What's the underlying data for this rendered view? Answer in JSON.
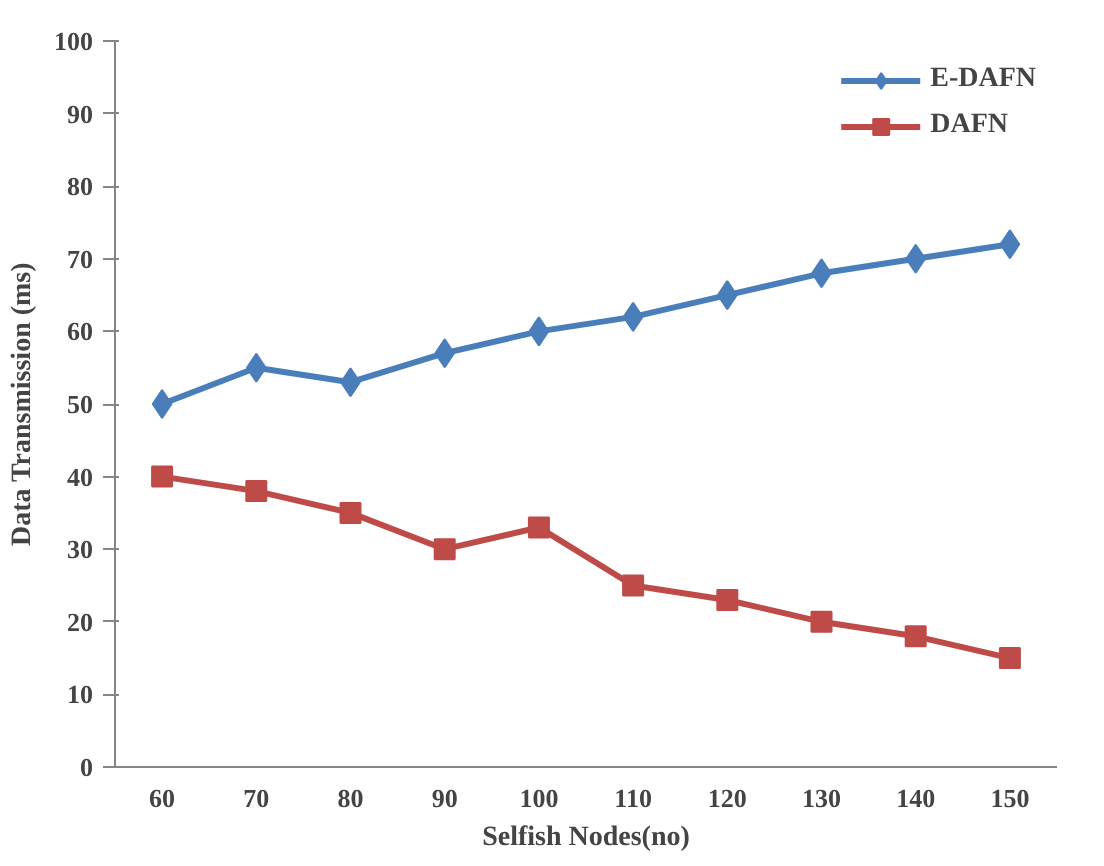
{
  "chart_data": {
    "type": "line",
    "xlabel": "Selfish Nodes(no)",
    "ylabel": "Data Transmission (ms)",
    "categories": [
      "60",
      "70",
      "80",
      "90",
      "100",
      "110",
      "120",
      "130",
      "140",
      "150"
    ],
    "series": [
      {
        "name": "E-DAFN",
        "color": "#4a7ebb",
        "marker": "diamond",
        "values": [
          50,
          55,
          53,
          57,
          60,
          62,
          65,
          68,
          70,
          72
        ]
      },
      {
        "name": "DAFN",
        "color": "#be4b48",
        "marker": "square",
        "values": [
          40,
          38,
          35,
          30,
          33,
          25,
          23,
          20,
          18,
          15
        ]
      }
    ],
    "ylim": [
      0,
      100
    ],
    "yticks": [
      0,
      10,
      20,
      30,
      40,
      50,
      60,
      70,
      80,
      90,
      100
    ],
    "grid": false,
    "legend": "top right",
    "line_style": "solid"
  }
}
